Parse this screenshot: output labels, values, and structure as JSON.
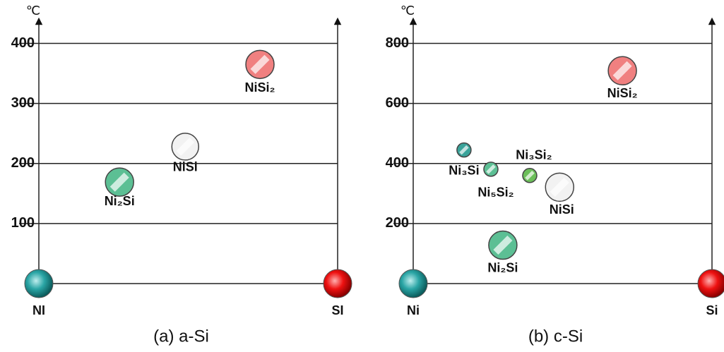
{
  "chart_data": [
    {
      "type": "scatter",
      "title": "(a) a-Si",
      "ylabel": "℃",
      "x_labels": [
        "NI",
        "SI"
      ],
      "xlim": [
        0,
        1
      ],
      "ylim": [
        0,
        430
      ],
      "yticks": [
        100,
        200,
        300,
        400
      ],
      "grid": true,
      "points": [
        {
          "label": "Ni₂Si",
          "x": 0.27,
          "y": 169,
          "size": 20,
          "color": "#5cbf94"
        },
        {
          "label": "NiSi",
          "x": 0.49,
          "y": 228,
          "size": 19,
          "color": "#f2f2f2"
        },
        {
          "label": "NiSi₂",
          "x": 0.74,
          "y": 365,
          "size": 20,
          "color": "#f08080"
        }
      ]
    },
    {
      "type": "scatter",
      "title": "(b) c-Si",
      "ylabel": "℃",
      "x_labels": [
        "Ni",
        "Si"
      ],
      "xlim": [
        0,
        1
      ],
      "ylim": [
        0,
        860
      ],
      "yticks": [
        200,
        400,
        600,
        800
      ],
      "grid": true,
      "points": [
        {
          "label": "Ni₃Si",
          "x": 0.17,
          "y": 445,
          "size": 10,
          "color": "#3aa39a"
        },
        {
          "label": "Ni₅Si₂",
          "x": 0.26,
          "y": 381,
          "size": 10,
          "color": "#5cbf94"
        },
        {
          "label": "Ni₃Si₂",
          "x": 0.39,
          "y": 360,
          "size": 10,
          "color": "#6cbf5a"
        },
        {
          "label": "NiSi",
          "x": 0.49,
          "y": 321,
          "size": 20,
          "color": "#f2f2f2"
        },
        {
          "label": "Ni₂Si",
          "x": 0.3,
          "y": 128,
          "size": 20,
          "color": "#5cbf94"
        },
        {
          "label": "NiSi₂",
          "x": 0.7,
          "y": 709,
          "size": 20,
          "color": "#f08080"
        }
      ]
    }
  ]
}
